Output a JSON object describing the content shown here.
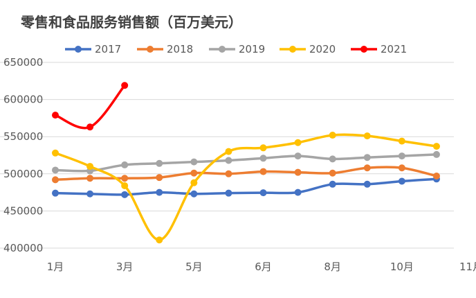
{
  "chart_data": {
    "type": "line",
    "title": "零售和食品服务销售额（百万美元）",
    "xlabel": "",
    "ylabel": "",
    "x_tick_labels": [
      "1月",
      "3月",
      "5月",
      "6月",
      "8月",
      "10月",
      "11月"
    ],
    "y_ticks": [
      400000,
      450000,
      500000,
      550000,
      600000,
      650000
    ],
    "ylim": [
      400000,
      650000
    ],
    "grid": "horizontal",
    "legend_position": "top",
    "smooth": true,
    "series": [
      {
        "name": "2017",
        "color": "#4472C4",
        "values": [
          474000,
          473000,
          472000,
          475000,
          473000,
          474000,
          474500,
          475000,
          486000,
          486000,
          490000,
          493000
        ]
      },
      {
        "name": "2018",
        "color": "#ED7D31",
        "values": [
          492000,
          494000,
          494000,
          495000,
          501000,
          500000,
          503000,
          502000,
          501000,
          508000,
          508000,
          497000
        ]
      },
      {
        "name": "2019",
        "color": "#A5A5A5",
        "values": [
          505000,
          504000,
          512000,
          514000,
          516000,
          518000,
          521000,
          524000,
          520000,
          522000,
          524000,
          526000
        ]
      },
      {
        "name": "2020",
        "color": "#FFC000",
        "values": [
          528000,
          510000,
          484000,
          411000,
          488000,
          530000,
          535000,
          542000,
          552000,
          551000,
          544000,
          537000
        ]
      },
      {
        "name": "2021",
        "color": "#FF0000",
        "values": [
          579000,
          563000,
          619000
        ]
      }
    ]
  }
}
